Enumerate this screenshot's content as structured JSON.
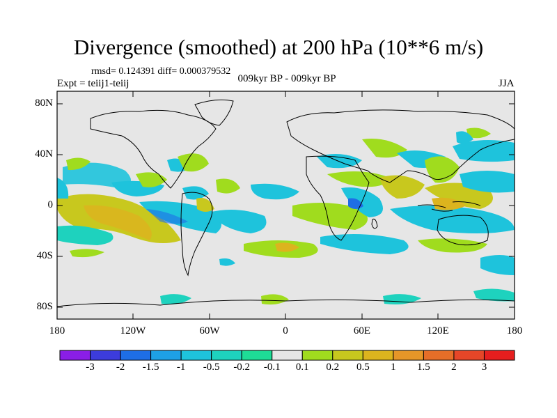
{
  "title": "Divergence (smoothed) at 200 hPa (10**6 m/s)",
  "stats": "rmsd= 0.124391 diff= 0.000379532",
  "period": "009kyr BP - 009kyr BP",
  "experiment": "Expt = teiij1-teiij",
  "season": "JJA",
  "lat_labels": [
    "80N",
    "40N",
    "0",
    "40S",
    "80S"
  ],
  "lon_labels": [
    "180",
    "120W",
    "60W",
    "0",
    "60E",
    "120E",
    "180"
  ],
  "colorbar": {
    "labels": [
      "-3",
      "-2",
      "-1.5",
      "-1",
      "-0.5",
      "-0.2",
      "-0.1",
      "0.1",
      "0.2",
      "0.5",
      "1",
      "1.5",
      "2",
      "3"
    ],
    "colors": [
      "#8a1ee6",
      "#3c3cdc",
      "#1e6ee6",
      "#1ea0e6",
      "#1ec3dc",
      "#1ed2be",
      "#1edc96",
      "#e6e6e6",
      "#a0dc1e",
      "#c8c81e",
      "#dcb41e",
      "#e69628",
      "#e66e28",
      "#e64628",
      "#e61e1e"
    ]
  },
  "map_background": "#e6e6e6"
}
